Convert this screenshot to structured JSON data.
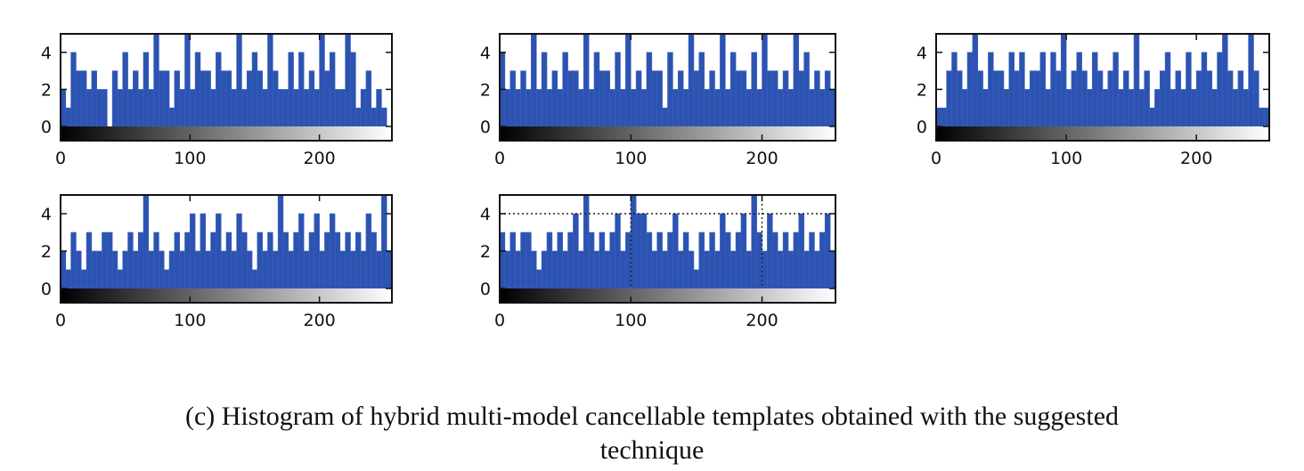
{
  "caption": {
    "line1": "(c) Histogram of hybrid multi-model cancellable templates obtained with the suggested",
    "line2": "technique"
  },
  "colors": {
    "bar": "#2c53b0",
    "bar_edge": "#3b62c4",
    "frame": "#111111",
    "colorbar_dark": "#000000",
    "colorbar_light": "#ffffff"
  },
  "chart_data": [
    {
      "type": "bar",
      "xlim": [
        0,
        256
      ],
      "ylim": [
        0,
        5
      ],
      "xticks": [
        "0",
        "100",
        "200"
      ],
      "yticks": [
        "0",
        "2",
        "4"
      ],
      "bin_width": 4,
      "x": [
        0,
        4,
        8,
        12,
        16,
        20,
        24,
        28,
        32,
        36,
        40,
        44,
        48,
        52,
        56,
        60,
        64,
        68,
        72,
        76,
        80,
        84,
        88,
        92,
        96,
        100,
        104,
        108,
        112,
        116,
        120,
        124,
        128,
        132,
        136,
        140,
        144,
        148,
        152,
        156,
        160,
        164,
        168,
        172,
        176,
        180,
        184,
        188,
        192,
        196,
        200,
        204,
        208,
        212,
        216,
        220,
        224,
        228,
        232,
        236,
        240,
        244,
        248,
        252
      ],
      "values": [
        2,
        1,
        4,
        3,
        3,
        2,
        3,
        2,
        2,
        0,
        3,
        2,
        4,
        2,
        3,
        2,
        4,
        2,
        5,
        3,
        3,
        1,
        3,
        2,
        5,
        2,
        4,
        3,
        3,
        2,
        4,
        3,
        3,
        2,
        5,
        2,
        3,
        4,
        3,
        2,
        5,
        3,
        2,
        2,
        4,
        2,
        4,
        2,
        3,
        2,
        5,
        3,
        4,
        2,
        2,
        5,
        4,
        1,
        2,
        3,
        1,
        2,
        1,
        0
      ]
    },
    {
      "type": "bar",
      "xlim": [
        0,
        256
      ],
      "ylim": [
        0,
        5
      ],
      "xticks": [
        "0",
        "100",
        "200"
      ],
      "yticks": [
        "0",
        "2",
        "4"
      ],
      "bin_width": 4,
      "x": [
        0,
        4,
        8,
        12,
        16,
        20,
        24,
        28,
        32,
        36,
        40,
        44,
        48,
        52,
        56,
        60,
        64,
        68,
        72,
        76,
        80,
        84,
        88,
        92,
        96,
        100,
        104,
        108,
        112,
        116,
        120,
        124,
        128,
        132,
        136,
        140,
        144,
        148,
        152,
        156,
        160,
        164,
        168,
        172,
        176,
        180,
        184,
        188,
        192,
        196,
        200,
        204,
        208,
        212,
        216,
        220,
        224,
        228,
        232,
        236,
        240,
        244,
        248,
        252
      ],
      "values": [
        4,
        2,
        3,
        2,
        3,
        2,
        5,
        2,
        4,
        2,
        3,
        2,
        4,
        3,
        3,
        2,
        5,
        2,
        4,
        3,
        3,
        2,
        4,
        2,
        5,
        2,
        3,
        2,
        4,
        3,
        3,
        1,
        4,
        2,
        3,
        2,
        5,
        3,
        4,
        2,
        3,
        2,
        5,
        2,
        4,
        3,
        3,
        2,
        4,
        2,
        5,
        3,
        3,
        2,
        3,
        2,
        5,
        3,
        4,
        2,
        3,
        2,
        3,
        2
      ]
    },
    {
      "type": "bar",
      "xlim": [
        0,
        256
      ],
      "ylim": [
        0,
        5
      ],
      "xticks": [
        "0",
        "100",
        "200"
      ],
      "yticks": [
        "0",
        "2",
        "4"
      ],
      "bin_width": 4,
      "x": [
        0,
        4,
        8,
        12,
        16,
        20,
        24,
        28,
        32,
        36,
        40,
        44,
        48,
        52,
        56,
        60,
        64,
        68,
        72,
        76,
        80,
        84,
        88,
        92,
        96,
        100,
        104,
        108,
        112,
        116,
        120,
        124,
        128,
        132,
        136,
        140,
        144,
        148,
        152,
        156,
        160,
        164,
        168,
        172,
        176,
        180,
        184,
        188,
        192,
        196,
        200,
        204,
        208,
        212,
        216,
        220,
        224,
        228,
        232,
        236,
        240,
        244,
        248,
        252
      ],
      "values": [
        1,
        1,
        3,
        4,
        3,
        2,
        4,
        5,
        3,
        2,
        4,
        3,
        3,
        2,
        4,
        3,
        4,
        2,
        3,
        3,
        4,
        2,
        4,
        3,
        5,
        2,
        3,
        4,
        3,
        2,
        4,
        3,
        2,
        3,
        4,
        2,
        3,
        2,
        5,
        2,
        3,
        1,
        2,
        3,
        4,
        2,
        3,
        2,
        4,
        2,
        3,
        4,
        3,
        2,
        4,
        5,
        3,
        2,
        3,
        2,
        5,
        3,
        1,
        1
      ]
    },
    {
      "type": "bar",
      "xlim": [
        0,
        256
      ],
      "ylim": [
        0,
        5
      ],
      "xticks": [
        "0",
        "100",
        "200"
      ],
      "yticks": [
        "0",
        "2",
        "4"
      ],
      "bin_width": 4,
      "x": [
        0,
        4,
        8,
        12,
        16,
        20,
        24,
        28,
        32,
        36,
        40,
        44,
        48,
        52,
        56,
        60,
        64,
        68,
        72,
        76,
        80,
        84,
        88,
        92,
        96,
        100,
        104,
        108,
        112,
        116,
        120,
        124,
        128,
        132,
        136,
        140,
        144,
        148,
        152,
        156,
        160,
        164,
        168,
        172,
        176,
        180,
        184,
        188,
        192,
        196,
        200,
        204,
        208,
        212,
        216,
        220,
        224,
        228,
        232,
        236,
        240,
        244,
        248,
        252
      ],
      "values": [
        2,
        1,
        3,
        2,
        1,
        3,
        2,
        2,
        3,
        3,
        2,
        1,
        2,
        3,
        2,
        3,
        5,
        2,
        3,
        2,
        1,
        2,
        3,
        2,
        3,
        4,
        2,
        4,
        2,
        3,
        4,
        2,
        3,
        2,
        4,
        3,
        2,
        1,
        3,
        2,
        3,
        2,
        5,
        3,
        2,
        3,
        4,
        2,
        3,
        4,
        2,
        3,
        4,
        3,
        2,
        3,
        2,
        3,
        2,
        4,
        3,
        2,
        5,
        2
      ]
    },
    {
      "type": "bar",
      "xlim": [
        0,
        256
      ],
      "ylim": [
        0,
        5
      ],
      "xticks": [
        "0",
        "100",
        "200"
      ],
      "yticks": [
        "0",
        "2",
        "4"
      ],
      "bin_width": 4,
      "grid": "dotted lines at x=100, x=200 and y=4",
      "x": [
        0,
        4,
        8,
        12,
        16,
        20,
        24,
        28,
        32,
        36,
        40,
        44,
        48,
        52,
        56,
        60,
        64,
        68,
        72,
        76,
        80,
        84,
        88,
        92,
        96,
        100,
        104,
        108,
        112,
        116,
        120,
        124,
        128,
        132,
        136,
        140,
        144,
        148,
        152,
        156,
        160,
        164,
        168,
        172,
        176,
        180,
        184,
        188,
        192,
        196,
        200,
        204,
        208,
        212,
        216,
        220,
        224,
        228,
        232,
        236,
        240,
        244,
        248,
        252
      ],
      "values": [
        3,
        2,
        3,
        2,
        3,
        3,
        2,
        1,
        2,
        3,
        2,
        3,
        2,
        3,
        4,
        2,
        5,
        3,
        2,
        3,
        2,
        3,
        4,
        2,
        3,
        5,
        4,
        4,
        3,
        2,
        3,
        2,
        3,
        4,
        2,
        3,
        2,
        1,
        3,
        2,
        3,
        2,
        4,
        3,
        2,
        3,
        4,
        2,
        5,
        3,
        2,
        4,
        3,
        2,
        3,
        2,
        3,
        4,
        2,
        3,
        2,
        3,
        4,
        2
      ]
    }
  ]
}
